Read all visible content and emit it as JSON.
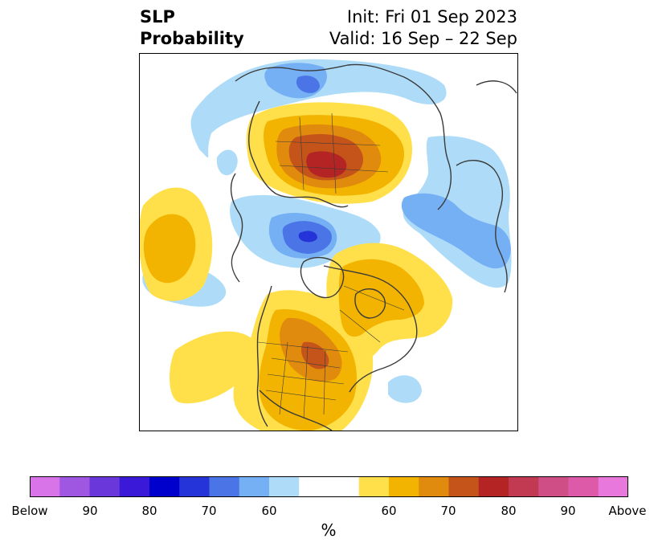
{
  "title": {
    "left_line1": "SLP",
    "left_line2": "Probability",
    "init": "Init: Fri 01 Sep 2023",
    "valid": "Valid: 16 Sep – 22 Sep"
  },
  "colorbar": {
    "colors": [
      "#d874e8",
      "#9f57e2",
      "#6a38da",
      "#3a1ad8",
      "#0000cc",
      "#2434d8",
      "#4b74e6",
      "#76b0f4",
      "#aedcf8",
      "#ffffff",
      "#ffffff",
      "#ffe04a",
      "#f2b400",
      "#e08a0e",
      "#c4541a",
      "#b42424",
      "#c23a52",
      "#cf4e86",
      "#dc5aa8",
      "#e878dc"
    ],
    "tick_labels": [
      "Below",
      "90",
      "80",
      "70",
      "60",
      "60",
      "70",
      "80",
      "90",
      "Above"
    ],
    "unit": "%"
  },
  "colors": {
    "frame": "#000000",
    "coastline": "#3a3a3a",
    "below_50_60": "#aedcf8",
    "below_60_70": "#76b0f4",
    "below_70_80": "#4b74e6",
    "below_80_90": "#2434d8",
    "above_50_60": "#ffe04a",
    "above_60_70": "#f2b400",
    "above_70_80": "#e08a0e",
    "above_80_90": "#c4541a",
    "above_90": "#b42424"
  }
}
